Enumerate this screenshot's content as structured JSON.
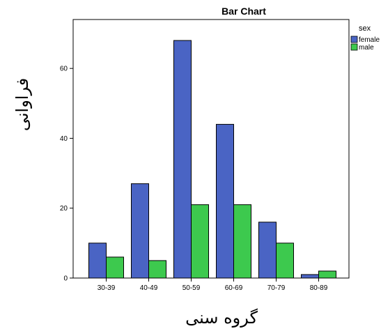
{
  "chart_data": {
    "type": "bar",
    "title": "Bar Chart",
    "xlabel": "گروه سنی",
    "ylabel": "فراوانی",
    "categories": [
      "30-39",
      "40-49",
      "50-59",
      "60-69",
      "70-79",
      "80-89"
    ],
    "series": [
      {
        "name": "female",
        "values": [
          10,
          27,
          68,
          44,
          16,
          1
        ],
        "color": "#4a64c4"
      },
      {
        "name": "male",
        "values": [
          6,
          5,
          21,
          21,
          10,
          2
        ],
        "color": "#3dc94e"
      }
    ],
    "ylim": [
      0,
      74
    ],
    "yticks": [
      0,
      20,
      40,
      60
    ],
    "legend_title": "sex",
    "legend_position": "top-right",
    "grid": false
  }
}
